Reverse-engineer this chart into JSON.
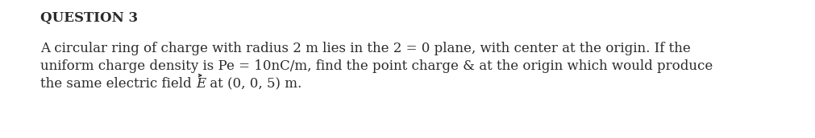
{
  "background_color": "#ffffff",
  "title_text": "QUESTION 3",
  "body_line1": "A circular ring of charge with radius 2 m lies in the 2 = 0 plane, with center at the origin. If the",
  "body_line2": "uniform charge density is Pe = 10nC/m, find the point charge & at the origin which would produce",
  "body_line3_part1": "the same electric field ",
  "body_line3_E": "E",
  "body_line3_part2": " at (0, 0, 5) m.",
  "title_fontsize": 12,
  "body_fontsize": 12,
  "text_color": "#2b2b2b",
  "fig_width": 10.11,
  "fig_height": 1.72,
  "dpi": 100
}
